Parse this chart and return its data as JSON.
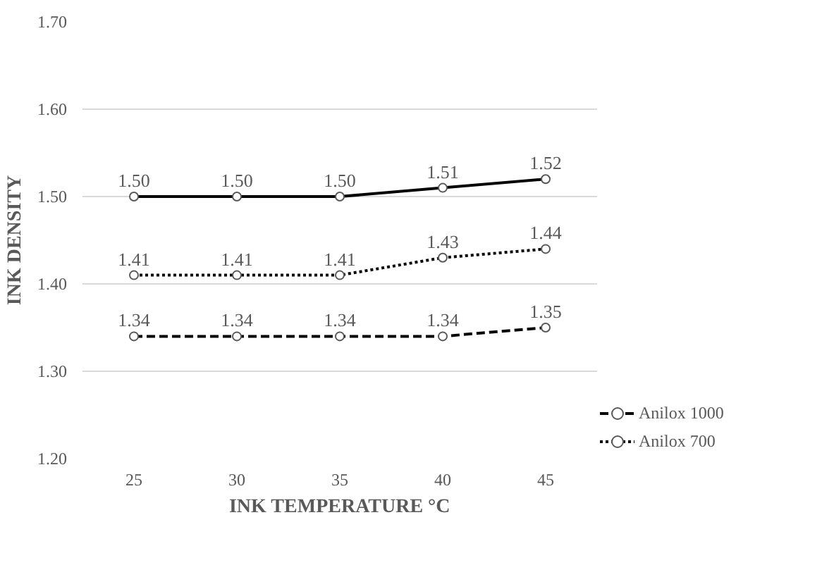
{
  "chart_data": {
    "type": "line",
    "xlabel": "INK TEMPERATURE °C",
    "ylabel": "INK DENSITY",
    "categories": [
      "25",
      "30",
      "35",
      "40",
      "45"
    ],
    "series": [
      {
        "color": "#000000",
        "line_style": "solid",
        "values": [
          1.5,
          1.5,
          1.5,
          1.51,
          1.52
        ],
        "value_labels": [
          "1.50",
          "1.50",
          "1.50",
          "1.51",
          "1.52"
        ]
      },
      {
        "name": "Anilox 700",
        "color": "#000000",
        "line_style": "dotted",
        "values": [
          1.41,
          1.41,
          1.41,
          1.43,
          1.44
        ],
        "value_labels": [
          "1.41",
          "1.41",
          "1.41",
          "1.43",
          "1.44"
        ]
      },
      {
        "name": "Anilox 1000",
        "color": "#000000",
        "line_style": "dashed",
        "values": [
          1.34,
          1.34,
          1.34,
          1.34,
          1.35
        ],
        "value_labels": [
          "1.34",
          "1.34",
          "1.34",
          "1.34",
          "1.35"
        ]
      }
    ],
    "ylim": [
      1.2,
      1.7
    ],
    "yticks": [
      {
        "value": 1.2,
        "label": "1.20"
      },
      {
        "value": 1.3,
        "label": "1.30"
      },
      {
        "value": 1.4,
        "label": "1.40"
      },
      {
        "value": 1.5,
        "label": "1.50"
      },
      {
        "value": 1.6,
        "label": "1.60"
      },
      {
        "value": 1.7,
        "label": "1.70"
      }
    ],
    "grid": "y",
    "legend": "bottom right",
    "marker": "circle"
  }
}
